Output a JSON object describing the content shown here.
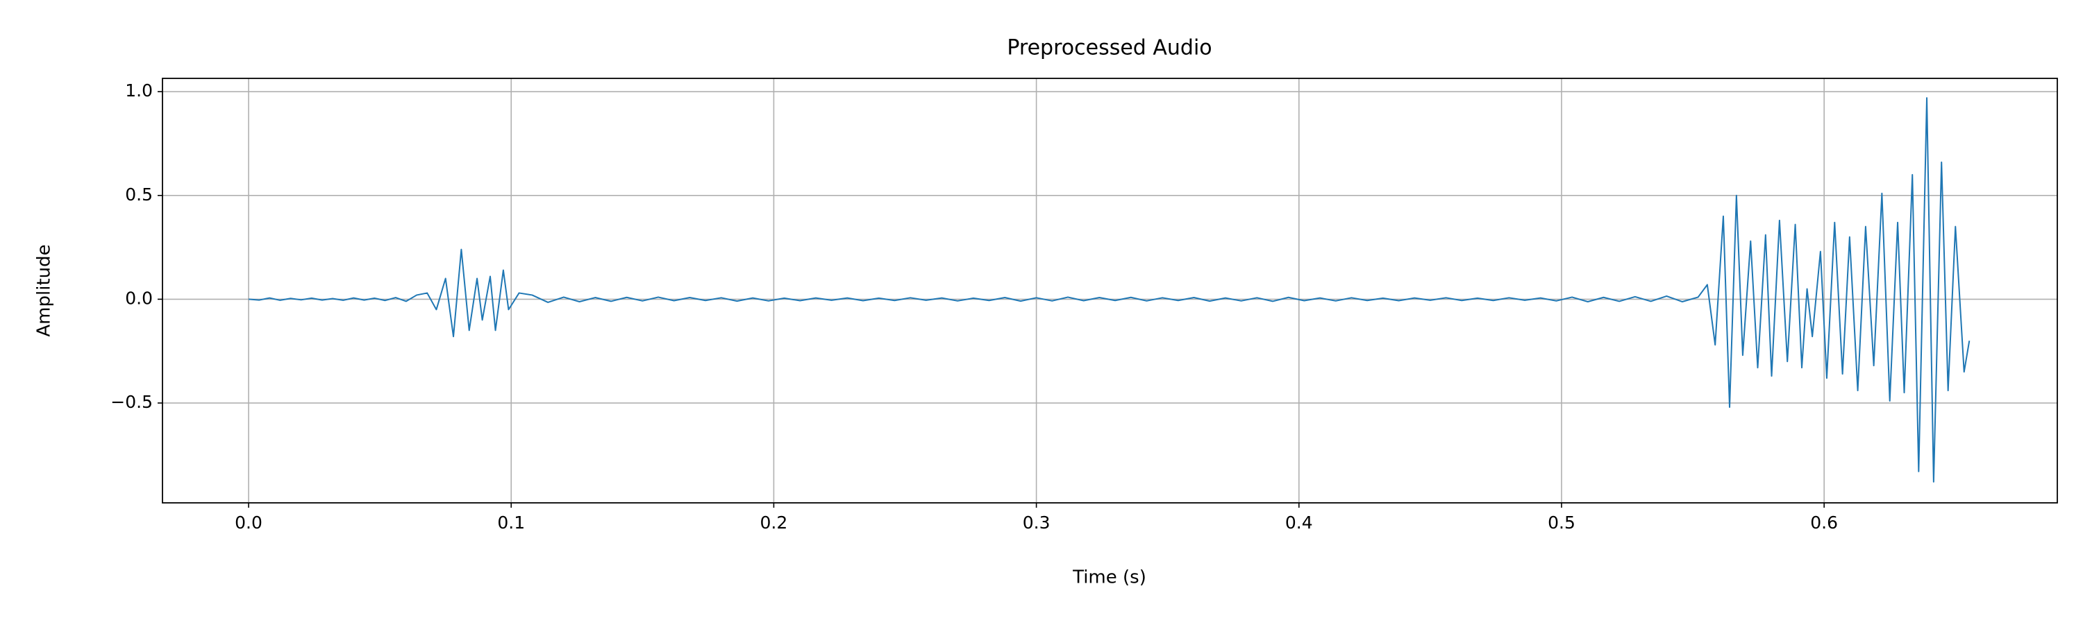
{
  "chart_data": {
    "type": "line",
    "title": "Preprocessed Audio",
    "x_label": "Time (s)",
    "y_label": "Amplitude",
    "xlim": [
      -0.0328,
      0.6888
    ],
    "ylim": [
      -0.981,
      1.064
    ],
    "xticks": [
      {
        "value": 0,
        "label": "0.0"
      },
      {
        "value": 0.1,
        "label": "0.1"
      },
      {
        "value": 0.2,
        "label": "0.2"
      },
      {
        "value": 0.3,
        "label": "0.3"
      },
      {
        "value": 0.4,
        "label": "0.4"
      },
      {
        "value": 0.5,
        "label": "0.5"
      },
      {
        "value": 0.6,
        "label": "0.6"
      }
    ],
    "yticks": [
      {
        "value": -0.5,
        "label": "−0.5"
      },
      {
        "value": 0,
        "label": "0.0"
      },
      0.5,
      {
        "value": 1,
        "label": "1.0"
      }
    ],
    "grid": true,
    "x": [
      0.0,
      0.004,
      0.008,
      0.012,
      0.016,
      0.02,
      0.024,
      0.028,
      0.032,
      0.036,
      0.04,
      0.044,
      0.048,
      0.052,
      0.056,
      0.06,
      0.064,
      0.068,
      0.0715,
      0.075,
      0.078,
      0.081,
      0.084,
      0.087,
      0.089,
      0.092,
      0.094,
      0.097,
      0.099,
      0.103,
      0.108,
      0.114,
      0.12,
      0.126,
      0.132,
      0.138,
      0.144,
      0.15,
      0.156,
      0.162,
      0.168,
      0.174,
      0.18,
      0.186,
      0.192,
      0.198,
      0.204,
      0.21,
      0.216,
      0.222,
      0.228,
      0.234,
      0.24,
      0.246,
      0.252,
      0.258,
      0.264,
      0.27,
      0.276,
      0.282,
      0.288,
      0.294,
      0.3,
      0.306,
      0.312,
      0.318,
      0.324,
      0.33,
      0.336,
      0.342,
      0.348,
      0.354,
      0.36,
      0.366,
      0.372,
      0.378,
      0.384,
      0.39,
      0.396,
      0.402,
      0.408,
      0.414,
      0.42,
      0.426,
      0.432,
      0.438,
      0.444,
      0.45,
      0.456,
      0.462,
      0.468,
      0.474,
      0.48,
      0.486,
      0.492,
      0.498,
      0.504,
      0.51,
      0.516,
      0.522,
      0.528,
      0.534,
      0.54,
      0.546,
      0.552,
      0.5555,
      0.5585,
      0.5616,
      0.564,
      0.5666,
      0.569,
      0.572,
      0.5747,
      0.5777,
      0.58,
      0.583,
      0.586,
      0.589,
      0.5915,
      0.5935,
      0.5955,
      0.5986,
      0.601,
      0.604,
      0.607,
      0.6097,
      0.6128,
      0.6158,
      0.6189,
      0.622,
      0.625,
      0.628,
      0.6305,
      0.6336,
      0.636,
      0.6391,
      0.6417,
      0.6447,
      0.6472,
      0.65,
      0.6533,
      0.6553
    ],
    "series": [
      {
        "color": "#1f77b4",
        "values": [
          0,
          -0.004,
          0.006,
          -0.005,
          0.004,
          -0.003,
          0.005,
          -0.004,
          0.003,
          -0.005,
          0.006,
          -0.004,
          0.005,
          -0.006,
          0.008,
          -0.01,
          0.02,
          0.03,
          -0.05,
          0.1,
          -0.18,
          0.24,
          -0.15,
          0.1,
          -0.1,
          0.11,
          -0.15,
          0.14,
          -0.05,
          0.03,
          0.02,
          -0.015,
          0.01,
          -0.012,
          0.008,
          -0.01,
          0.009,
          -0.008,
          0.01,
          -0.007,
          0.008,
          -0.006,
          0.007,
          -0.009,
          0.006,
          -0.008,
          0.005,
          -0.007,
          0.006,
          -0.005,
          0.006,
          -0.007,
          0.005,
          -0.006,
          0.007,
          -0.005,
          0.006,
          -0.008,
          0.005,
          -0.006,
          0.008,
          -0.009,
          0.007,
          -0.008,
          0.01,
          -0.007,
          0.008,
          -0.006,
          0.009,
          -0.008,
          0.007,
          -0.006,
          0.008,
          -0.009,
          0.006,
          -0.008,
          0.007,
          -0.01,
          0.009,
          -0.007,
          0.006,
          -0.008,
          0.007,
          -0.006,
          0.005,
          -0.007,
          0.006,
          -0.005,
          0.007,
          -0.006,
          0.005,
          -0.006,
          0.007,
          -0.005,
          0.006,
          -0.008,
          0.01,
          -0.012,
          0.009,
          -0.01,
          0.012,
          -0.01,
          0.015,
          -0.012,
          0.01,
          0.07,
          -0.22,
          0.4,
          -0.52,
          0.5,
          -0.27,
          0.28,
          -0.33,
          0.31,
          -0.37,
          0.38,
          -0.3,
          0.36,
          -0.33,
          0.05,
          -0.18,
          0.23,
          -0.38,
          0.37,
          -0.36,
          0.3,
          -0.44,
          0.35,
          -0.32,
          0.51,
          -0.49,
          0.37,
          -0.45,
          0.6,
          -0.83,
          0.97,
          -0.88,
          0.66,
          -0.44,
          0.35,
          -0.35,
          -0.2
        ]
      }
    ]
  }
}
